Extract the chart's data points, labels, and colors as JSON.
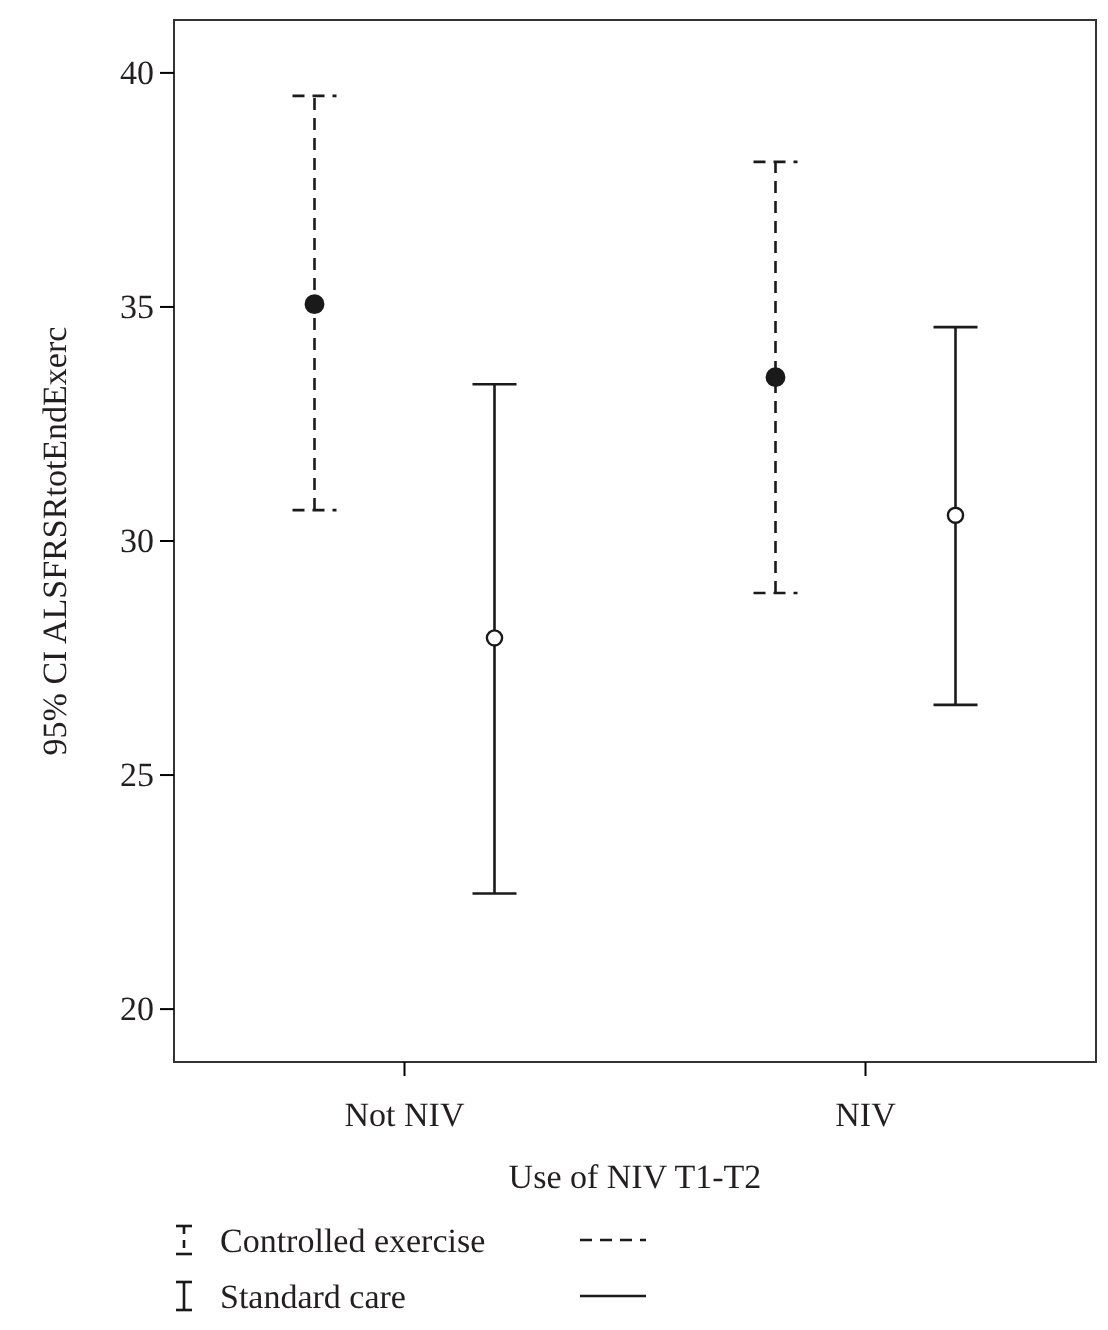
{
  "chart_data": {
    "type": "scatter",
    "xlabel": "Use of NIV T1-T2",
    "ylabel": "95% CI ALSFRSRtotEndExerc",
    "categories": [
      "Not NIV",
      "NIV"
    ],
    "series": [
      {
        "name": "Controlled exercise",
        "color": "#1a1a1a",
        "line_style": "dashed",
        "values": [
          35.06,
          33.5
        ],
        "errors": [
          [
            30.66,
            39.51
          ],
          [
            28.89,
            38.1
          ]
        ]
      },
      {
        "name": "Standard care",
        "color": "#1a1a1a",
        "line_style": "solid",
        "values": [
          27.93,
          30.55
        ],
        "errors": [
          [
            22.47,
            33.35
          ],
          [
            26.5,
            34.57
          ]
        ]
      }
    ],
    "ylim": [
      18.87,
      41.13
    ],
    "yticks": [
      20,
      25,
      30,
      35,
      40
    ],
    "grid": false,
    "legend": "bottom",
    "marker": "circle"
  }
}
